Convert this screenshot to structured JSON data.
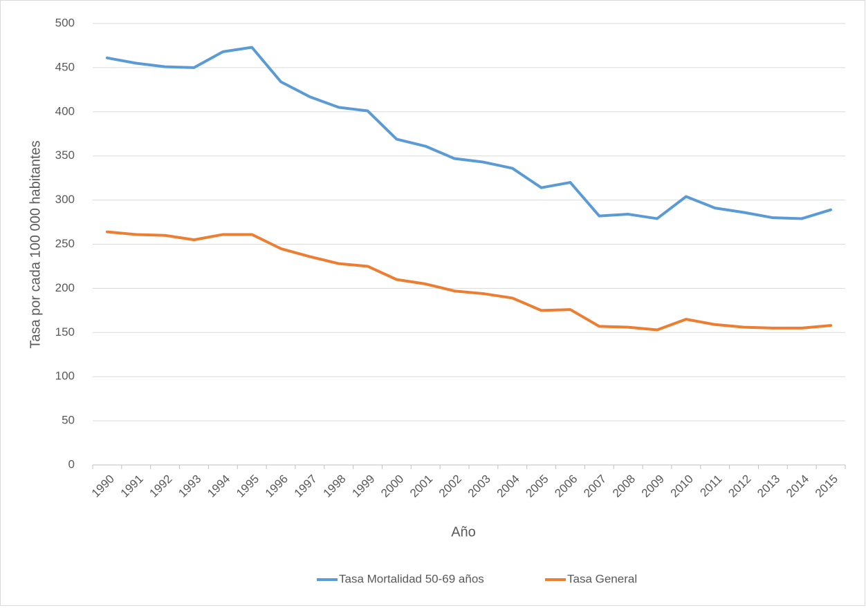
{
  "chart_data": {
    "type": "line",
    "x_label": "Año",
    "y_label": "Tasa por cada 100 000 habitantes",
    "categories": [
      "1990",
      "1991",
      "1992",
      "1993",
      "1994",
      "1995",
      "1996",
      "1997",
      "1998",
      "1999",
      "2000",
      "2001",
      "2002",
      "2003",
      "2004",
      "2005",
      "2006",
      "2007",
      "2008",
      "2009",
      "2010",
      "2011",
      "2012",
      "2013",
      "2014",
      "2015"
    ],
    "series": [
      {
        "name": "Tasa Mortalidad 50-69 años",
        "color": "#5b9bd5",
        "values": [
          461,
          455,
          451,
          450,
          468,
          473,
          434,
          417,
          405,
          401,
          369,
          361,
          347,
          343,
          336,
          314,
          320,
          282,
          284,
          279,
          304,
          291,
          286,
          280,
          279,
          289
        ]
      },
      {
        "name": "Tasa General",
        "color": "#ed7d31",
        "values": [
          264,
          261,
          260,
          255,
          261,
          261,
          245,
          236,
          228,
          225,
          210,
          205,
          197,
          194,
          189,
          175,
          176,
          157,
          156,
          153,
          165,
          159,
          156,
          155,
          155,
          158
        ]
      }
    ],
    "ylim": [
      0,
      500
    ],
    "yticks": [
      0,
      50,
      100,
      150,
      200,
      250,
      300,
      350,
      400,
      450,
      500
    ],
    "grid": true,
    "legend": "bottom"
  }
}
